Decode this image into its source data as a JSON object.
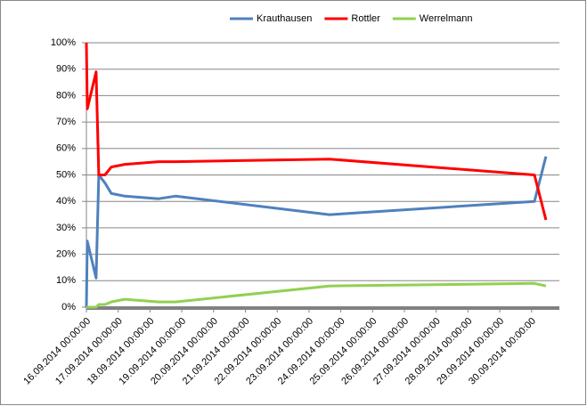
{
  "chart_data": {
    "type": "line",
    "x": [
      "16.09.2014 00:00:00",
      "16.09.2014 00:40:00",
      "16.09.2014 07:20:00",
      "16.09.2014 09:20:00",
      "16.09.2014 14:00:00",
      "16.09.2014 18:50:00",
      "17.09.2014 05:00:00",
      "18.09.2014 06:30:00",
      "18.09.2014 19:10:00",
      "23.09.2014 15:30:00",
      "30.09.2014 02:10:00",
      "30.09.2014 10:50:00"
    ],
    "series": [
      {
        "name": "Krauthausen",
        "color": "#4f81bd",
        "values": [
          0,
          25,
          11,
          50,
          47,
          43,
          42,
          41,
          42,
          35,
          40,
          57
        ]
      },
      {
        "name": "Rottler",
        "color": "#ff0000",
        "values": [
          100,
          75,
          89,
          50,
          50,
          53,
          54,
          55,
          55,
          56,
          50,
          33
        ]
      },
      {
        "name": "Werrelmann",
        "color": "#92d050",
        "values": [
          0,
          0,
          0,
          1,
          1,
          2,
          3,
          2,
          2,
          8,
          9,
          8
        ]
      }
    ],
    "xlim": [
      "16.09.2014 00:00:00",
      "30.09.2014 21:00:00"
    ],
    "xticks": [
      "16.09.2014 00:00:00",
      "17.09.2014 00:00:00",
      "18.09.2014 00:00:00",
      "19.09.2014 00:00:00",
      "20.09.2014 00:00:00",
      "21.09.2014 00:00:00",
      "22.09.2014 00:00:00",
      "23.09.2014 00:00:00",
      "24.09.2014 00:00:00",
      "25.09.2014 00:00:00",
      "26.09.2014 00:00:00",
      "27.09.2014 00:00:00",
      "28.09.2014 00:00:00",
      "29.09.2014 00:00:00",
      "30.09.2014 00:00:00"
    ],
    "ylim": [
      0,
      100
    ],
    "yticks": [
      {
        "value": 0,
        "label": "0%"
      },
      {
        "value": 10,
        "label": "10%"
      },
      {
        "value": 20,
        "label": "20%"
      },
      {
        "value": 30,
        "label": "30%"
      },
      {
        "value": 40,
        "label": "40%"
      },
      {
        "value": 50,
        "label": "50%"
      },
      {
        "value": 60,
        "label": "60%"
      },
      {
        "value": 70,
        "label": "70%"
      },
      {
        "value": 80,
        "label": "80%"
      },
      {
        "value": 90,
        "label": "90%"
      },
      {
        "value": 100,
        "label": "100%"
      }
    ],
    "grid": true,
    "legend": "top"
  }
}
